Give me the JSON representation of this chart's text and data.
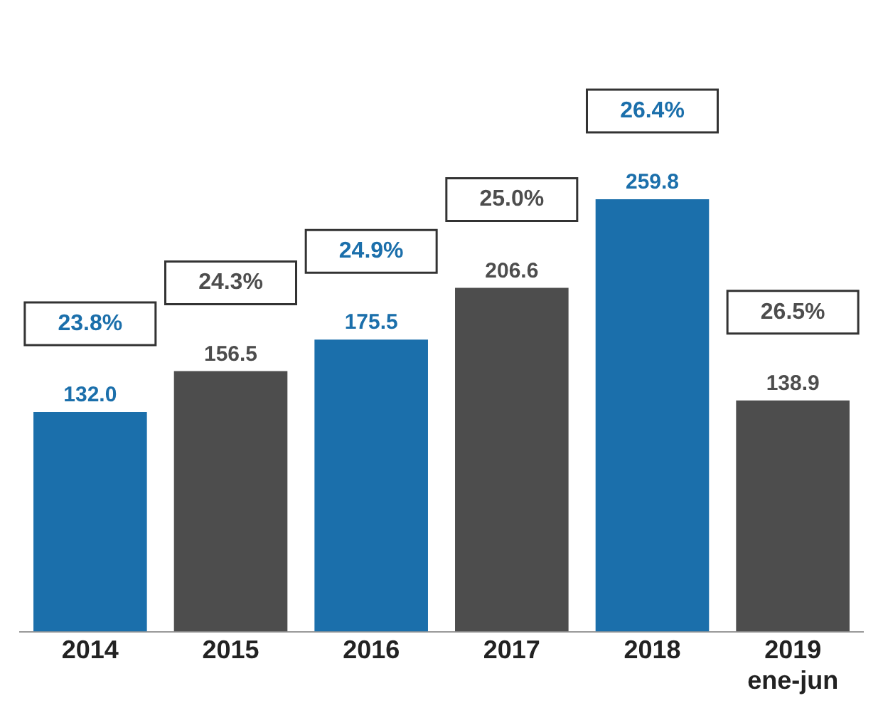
{
  "chart_data": {
    "type": "bar",
    "categories": [
      "2014",
      "2015",
      "2016",
      "2017",
      "2018",
      "2019\nene-jun"
    ],
    "values": [
      132.0,
      156.5,
      175.5,
      206.6,
      259.8,
      138.9
    ],
    "colors": [
      "#1b6fab",
      "#4d4d4d",
      "#1b6fab",
      "#4d4d4d",
      "#1b6fab",
      "#4d4d4d"
    ],
    "value_labels": [
      "132.0",
      "156.5",
      "175.5",
      "206.6",
      "259.8",
      "138.9"
    ],
    "tick_labels": "x",
    "grid": false,
    "legend": false,
    "annotations": [
      "23.8%",
      "24.3%",
      "24.9%",
      "25.0%",
      "26.4%",
      "26.5%"
    ]
  }
}
